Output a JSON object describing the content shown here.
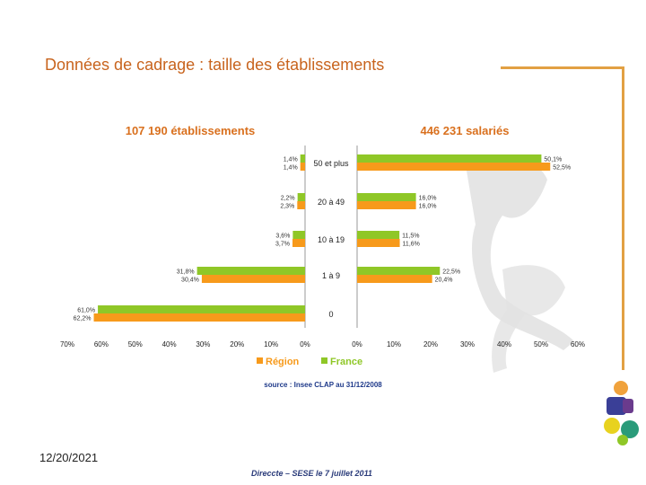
{
  "slide": {
    "title": "Données de cadrage : taille  des établissements",
    "date": "12/20/2021",
    "footer": "Direccte – SESE le 7 juillet 2011"
  },
  "chart_data": {
    "type": "bar",
    "orientation": "horizontal",
    "categories": [
      "50 et plus",
      "20 à 49",
      "10 à 19",
      "1 à 9",
      "0"
    ],
    "left_panel": {
      "title": "107 190 établissements",
      "series": [
        {
          "name": "Région",
          "values": [
            1.4,
            2.3,
            3.7,
            30.4,
            62.2
          ],
          "labels": [
            "1,4%",
            "2,3%",
            "3,7%",
            "30,4%",
            "62,2%"
          ]
        },
        {
          "name": "France",
          "values": [
            1.4,
            2.2,
            3.6,
            31.8,
            61.0
          ],
          "labels": [
            "1,4%",
            "2,2%",
            "3,6%",
            "31,8%",
            "61,0%"
          ]
        }
      ],
      "xlim": [
        0,
        70
      ],
      "ticks": [
        "70%",
        "60%",
        "50%",
        "40%",
        "30%",
        "20%",
        "10%",
        "0%"
      ]
    },
    "right_panel": {
      "title": "446 231 salariés",
      "series": [
        {
          "name": "Région",
          "values": [
            52.5,
            16.0,
            11.6,
            20.4,
            null
          ],
          "labels": [
            "52,5%",
            "16,0%",
            "11,6%",
            "20,4%",
            ""
          ]
        },
        {
          "name": "France",
          "values": [
            50.1,
            16.0,
            11.5,
            22.5,
            null
          ],
          "labels": [
            "50,1%",
            "16,0%",
            "11,5%",
            "22,5%",
            ""
          ]
        }
      ],
      "xlim": [
        0,
        60
      ],
      "ticks": [
        "0%",
        "10%",
        "20%",
        "30%",
        "40%",
        "50%",
        "60%"
      ]
    },
    "legend": [
      {
        "name": "Région",
        "color": "#f79a1b"
      },
      {
        "name": "France",
        "color": "#8fc727"
      }
    ],
    "source": "source : Insee CLAP au 31/12/2008",
    "colors": {
      "green": "#8fc727",
      "orange": "#f79a1b",
      "title_text": "#d9701e",
      "source_text": "#1f3a8a"
    }
  }
}
